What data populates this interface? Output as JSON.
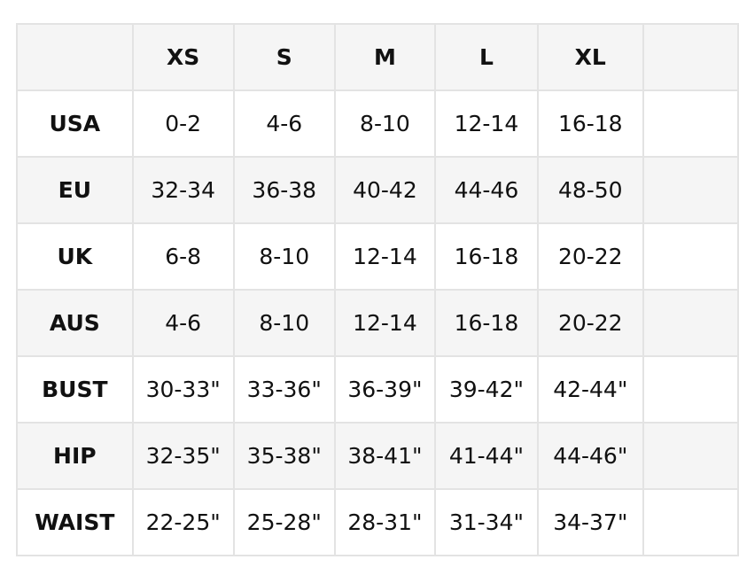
{
  "table": {
    "sizes": [
      "XS",
      "S",
      "M",
      "L",
      "XL"
    ],
    "rows": [
      {
        "label": "USA",
        "values": [
          "0-2",
          "4-6",
          "8-10",
          "12-14",
          "16-18"
        ]
      },
      {
        "label": "EU",
        "values": [
          "32-34",
          "36-38",
          "40-42",
          "44-46",
          "48-50"
        ]
      },
      {
        "label": "UK",
        "values": [
          "6-8",
          "8-10",
          "12-14",
          "16-18",
          "20-22"
        ]
      },
      {
        "label": "AUS",
        "values": [
          "4-6",
          "8-10",
          "12-14",
          "16-18",
          "20-22"
        ]
      },
      {
        "label": "BUST",
        "values": [
          "30-33\"",
          "33-36\"",
          "36-39\"",
          "39-42\"",
          "42-44\""
        ]
      },
      {
        "label": "HIP",
        "values": [
          "32-35\"",
          "35-38\"",
          "38-41\"",
          "41-44\"",
          "44-46\""
        ]
      },
      {
        "label": "WAIST",
        "values": [
          "22-25\"",
          "25-28\"",
          "28-31\"",
          "31-34\"",
          "34-37\""
        ]
      }
    ]
  }
}
